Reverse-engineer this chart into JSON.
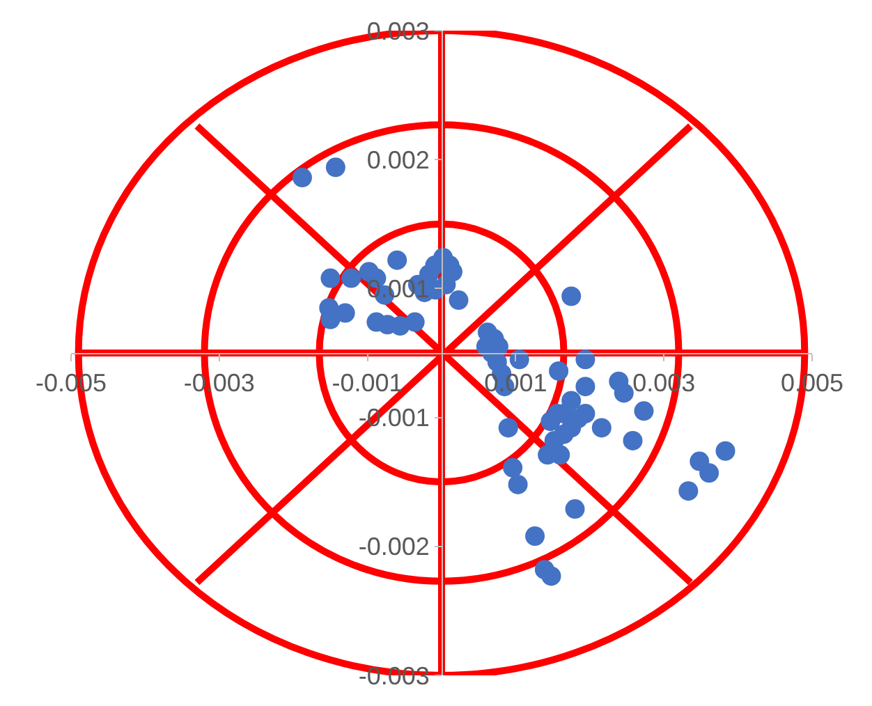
{
  "chart_data": {
    "type": "scatter",
    "marker": "circle",
    "grid": false,
    "xlim": [
      -0.005,
      0.005
    ],
    "ylim": [
      -0.0025,
      0.0025
    ],
    "xticks": [
      -0.005,
      -0.003,
      -0.001,
      0.001,
      0.003,
      0.005
    ],
    "yticks": [
      {
        "value": -0.0025,
        "label": "-0.003"
      },
      {
        "value": -0.0015,
        "label": "-0.002"
      },
      {
        "value": -0.0005,
        "label": "-0.001"
      },
      {
        "value": 0.0005,
        "label": "0.001"
      },
      {
        "value": 0.0015,
        "label": "0.002"
      },
      {
        "value": 0.0025,
        "label": "0.003"
      }
    ],
    "series": [
      {
        "type": "line",
        "marker": "none",
        "color": "#ff0000",
        "x": [
          -0.0049,
          0.0049
        ],
        "values": [
          0,
          0
        ]
      },
      {
        "type": "line",
        "marker": "none",
        "color": "#ff0000",
        "x": [
          0,
          0
        ],
        "values": [
          -0.0025,
          0.0025
        ]
      },
      {
        "type": "line",
        "marker": "none",
        "color": "#ff0000",
        "x": [
          -0.0033,
          0.00336
        ],
        "values": [
          0.00176,
          -0.00178
        ]
      },
      {
        "type": "line",
        "marker": "none",
        "color": "#ff0000",
        "x": [
          -0.0033,
          0.00336
        ],
        "values": [
          -0.00178,
          0.00176
        ]
      },
      {
        "color": "#4472c4",
        "x": [
          -0.00188,
          -0.00143,
          -0.0015,
          -0.00152,
          -0.0013,
          -0.00122,
          -0.00098,
          -0.00088,
          -0.00073,
          -0.00056,
          -0.0006,
          -0.00036,
          -0.00032,
          -0.00023,
          -9e-05,
          -8e-05,
          2e-05,
          0.00011,
          6e-05,
          0.00023,
          -0.00017,
          0.00015,
          -0.0015,
          -0.00088,
          -0.00077,
          0.00062,
          0.00071,
          0.00077,
          0.00068,
          0.0006,
          0.00075,
          0.00081,
          0.00085,
          0.0009,
          0.00105,
          0.00158,
          0.00194,
          0.00175,
          0.00156,
          0.00147,
          0.00165,
          0.00194,
          0.00216,
          0.00239,
          0.00246,
          0.00273,
          0.00258,
          0.00194,
          0.00175,
          0.00152,
          0.00143,
          0.0016,
          0.00096,
          0.00103,
          0.00126,
          0.00139,
          0.00148,
          0.0018,
          0.00333,
          0.00348,
          0.00361,
          0.00383,
          0.00175,
          0.00184,
          0.00165
        ],
        "values": [
          0.00136,
          0.00144,
          0.00058,
          0.00035,
          0.00031,
          0.00058,
          0.00063,
          0.00024,
          0.00022,
          0.00021,
          0.00072,
          0.00024,
          0.00053,
          0.00047,
          0.00068,
          0.00049,
          0.00074,
          0.00068,
          0.00053,
          0.00041,
          0.00061,
          0.00063,
          0.00026,
          0.00058,
          0.00045,
          0.00016,
          0.00011,
          5e-05,
          0,
          5e-05,
          -7e-05,
          -0.00016,
          -0.00026,
          -0.00058,
          -5e-05,
          -0.00014,
          -5e-05,
          -0.00037,
          -0.00047,
          -0.00053,
          -0.00047,
          -0.00047,
          -0.00058,
          -0.00022,
          -0.00031,
          -0.00045,
          -0.00068,
          -0.00026,
          0.00044,
          -0.00068,
          -0.00079,
          -0.00079,
          -0.00089,
          -0.00102,
          -0.00142,
          -0.00168,
          -0.00173,
          -0.00121,
          -0.00107,
          -0.00084,
          -0.00093,
          -0.00076,
          -0.00058,
          -0.00051,
          -0.00063
        ]
      }
    ]
  }
}
